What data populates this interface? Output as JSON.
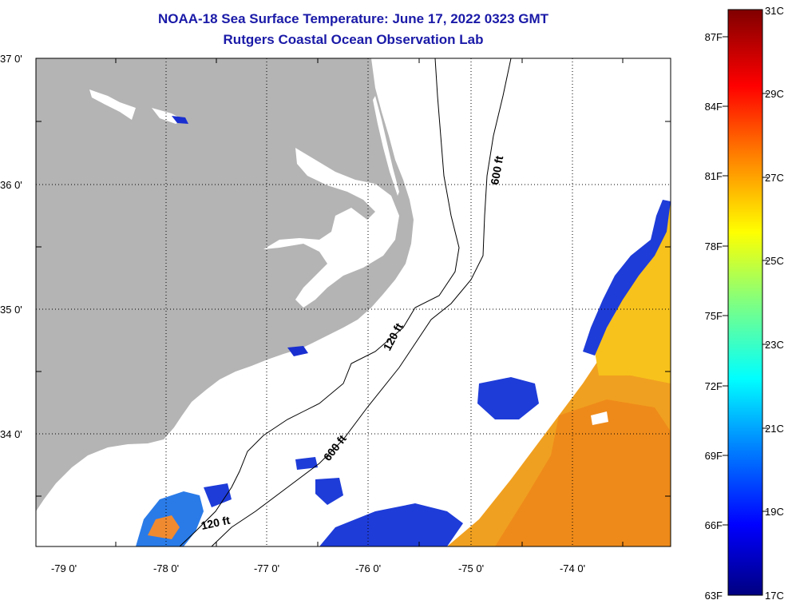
{
  "title": "NOAA-18 Sea Surface Temperature:  June 17, 2022 0323 GMT",
  "subtitle": "Rutgers Coastal Ocean Observation Lab",
  "lat_labels": [
    "37 0'",
    "36 0'",
    "35 0'",
    "34 0'"
  ],
  "lon_labels": [
    "-79 0'",
    "-78 0'",
    "-77 0'",
    "-76 0'",
    "-75 0'",
    "-74 0'"
  ],
  "contours": {
    "c600_upper": "600 ft",
    "c120_upper": "120 ft",
    "c600_lower": "600 ft",
    "c120_lower": "120 ft"
  },
  "colorbar": {
    "fahrenheit": [
      "87F",
      "84F",
      "81F",
      "78F",
      "75F",
      "72F",
      "69F",
      "66F",
      "63F"
    ],
    "celsius": [
      "31C",
      "29C",
      "27C",
      "25C",
      "23C",
      "21C",
      "19C",
      "17C"
    ]
  },
  "colors": {
    "land": "#b4b4b4",
    "title": "#1a1aa8"
  }
}
